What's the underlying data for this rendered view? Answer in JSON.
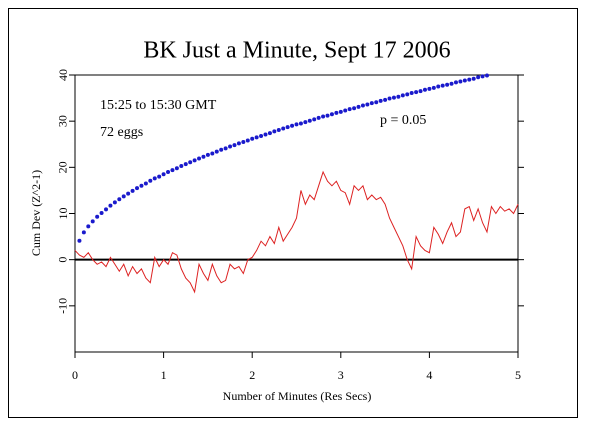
{
  "chart_data": {
    "type": "line",
    "title": "BK Just a Minute, Sept 17 2006",
    "xlabel": "Number of Minutes (Res Secs)",
    "ylabel": "Cum Dev (Z^2-1)",
    "annotations": [
      {
        "text": "15:25 to 15:30 GMT",
        "color": "#dd2222"
      },
      {
        "text": "72 eggs",
        "color": "#dd2222"
      },
      {
        "text": "p = 0.05",
        "color": "#1a1acc"
      }
    ],
    "xlim": [
      0,
      5
    ],
    "ylim": [
      -20,
      40
    ],
    "xticks": [
      0,
      1,
      2,
      3,
      4,
      5
    ],
    "yticks": [
      -10,
      0,
      10,
      20,
      30,
      40
    ],
    "x": [
      0,
      0.05,
      0.1,
      0.15,
      0.2,
      0.25,
      0.3,
      0.35,
      0.4,
      0.45,
      0.5,
      0.55,
      0.6,
      0.65,
      0.7,
      0.75,
      0.8,
      0.85,
      0.9,
      0.95,
      1,
      1.05,
      1.1,
      1.15,
      1.2,
      1.25,
      1.3,
      1.35,
      1.4,
      1.45,
      1.5,
      1.55,
      1.6,
      1.65,
      1.7,
      1.75,
      1.8,
      1.85,
      1.9,
      1.95,
      2,
      2.05,
      2.1,
      2.15,
      2.2,
      2.25,
      2.3,
      2.35,
      2.4,
      2.45,
      2.5,
      2.55,
      2.6,
      2.65,
      2.7,
      2.75,
      2.8,
      2.85,
      2.9,
      2.95,
      3,
      3.05,
      3.1,
      3.15,
      3.2,
      3.25,
      3.3,
      3.35,
      3.4,
      3.45,
      3.5,
      3.55,
      3.6,
      3.65,
      3.7,
      3.75,
      3.8,
      3.85,
      3.9,
      3.95,
      4,
      4.05,
      4.1,
      4.15,
      4.2,
      4.25,
      4.3,
      4.35,
      4.4,
      4.45,
      4.5,
      4.55,
      4.6,
      4.65,
      4.7,
      4.75,
      4.8,
      4.85,
      4.9,
      4.95,
      5
    ],
    "series": [
      {
        "color": "#1a1acc",
        "style": "dots",
        "values": [
          null,
          4.1,
          5.9,
          7.2,
          8.3,
          9.3,
          10.1,
          10.9,
          11.7,
          12.4,
          13.1,
          13.7,
          14.3,
          14.9,
          15.5,
          16.0,
          16.5,
          17.1,
          17.6,
          18.0,
          18.5,
          19.0,
          19.4,
          19.8,
          20.3,
          20.7,
          21.1,
          21.5,
          21.9,
          22.3,
          22.7,
          23.0,
          23.4,
          23.8,
          24.1,
          24.5,
          24.8,
          25.2,
          25.5,
          25.8,
          26.2,
          26.5,
          26.8,
          27.1,
          27.4,
          27.8,
          28.1,
          28.4,
          28.7,
          29.0,
          29.3,
          29.5,
          29.8,
          30.1,
          30.4,
          30.7,
          31.0,
          31.2,
          31.5,
          31.8,
          32.0,
          32.3,
          32.6,
          32.8,
          33.1,
          33.4,
          33.6,
          33.9,
          34.1,
          34.4,
          34.6,
          34.9,
          35.1,
          35.3,
          35.6,
          35.8,
          36.1,
          36.3,
          36.5,
          36.8,
          37.0,
          37.2,
          37.5,
          37.7,
          37.9,
          38.1,
          38.4,
          38.6,
          38.8,
          39.0,
          39.2,
          39.5,
          39.7,
          39.9,
          null,
          null,
          null,
          null,
          null,
          null,
          null
        ]
      },
      {
        "color": "#dd2222",
        "style": "line",
        "values": [
          2,
          1,
          0.5,
          1.5,
          0,
          -1,
          -0.5,
          -1.5,
          0.5,
          -1,
          -2.5,
          -1,
          -3.5,
          -1.5,
          -3,
          -2,
          -4,
          -5,
          0.5,
          -1.5,
          0,
          -1,
          1.5,
          1,
          -2,
          -4,
          -5,
          -7,
          -1,
          -3,
          -4.5,
          -1,
          -3.5,
          -5,
          -4.5,
          -1,
          -2,
          -1.5,
          -3,
          0,
          0.5,
          2,
          4,
          3,
          5,
          3.5,
          7,
          4,
          5.5,
          7,
          9,
          15,
          12,
          14,
          13,
          16,
          19,
          17,
          16,
          17,
          15,
          14.5,
          12,
          16,
          15,
          16,
          13,
          14,
          13,
          13.5,
          12,
          9,
          7,
          5,
          3,
          0,
          -2,
          5,
          3,
          2,
          1.5,
          7,
          5.5,
          3.5,
          6,
          8,
          5,
          6,
          11,
          11.5,
          8.5,
          11,
          8,
          6,
          11.5,
          10,
          11.5,
          10.5,
          11,
          10,
          12
        ]
      }
    ]
  }
}
